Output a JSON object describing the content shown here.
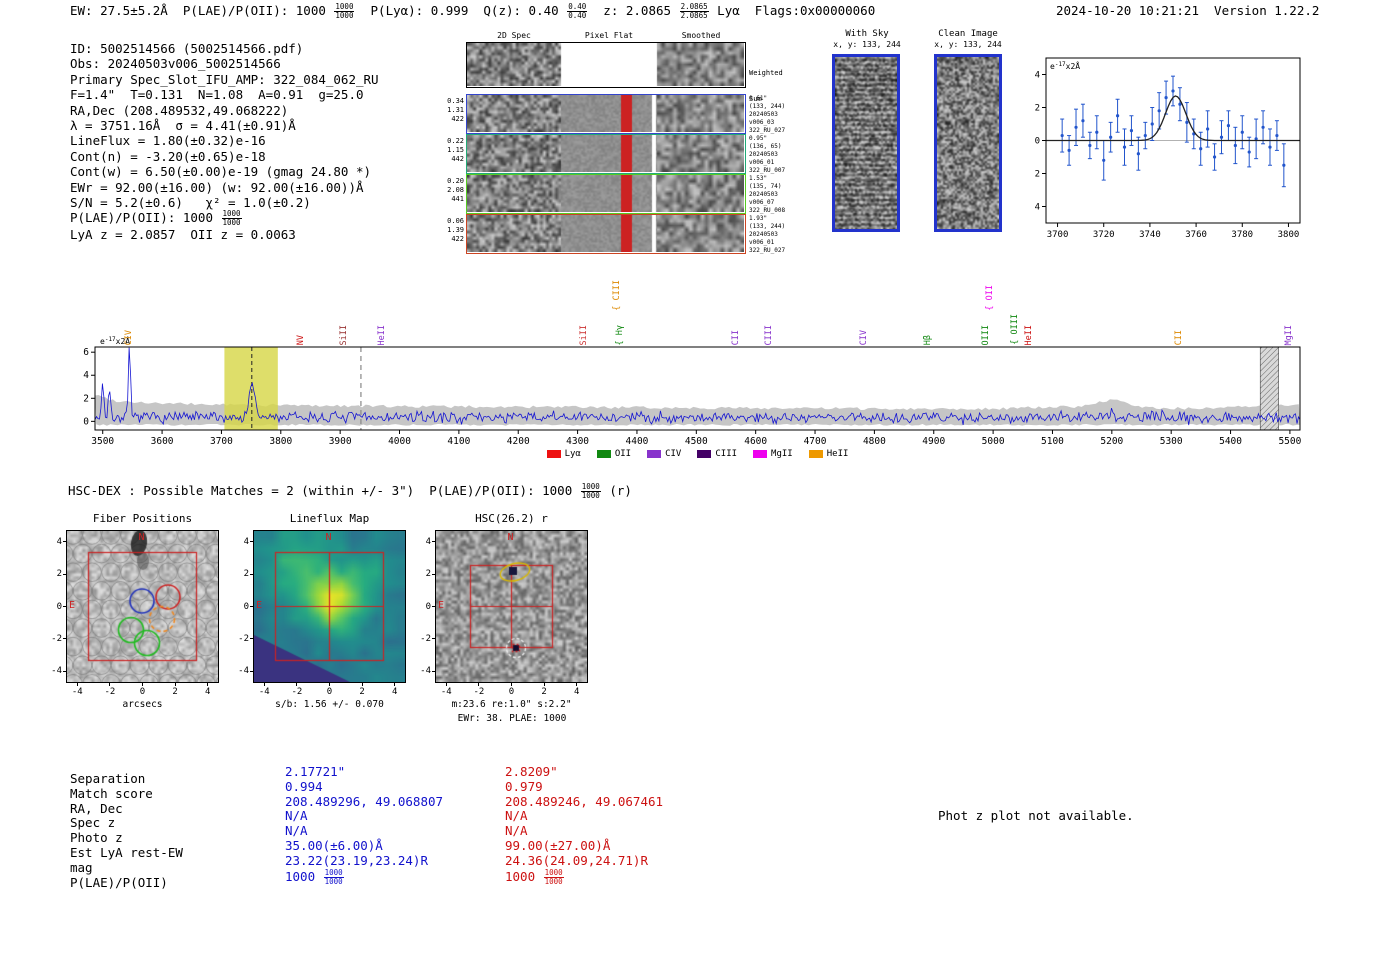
{
  "header": {
    "left_segments": [
      {
        "t": "EW: 27.5±5.2Å  P(LAE)/P(OII): 1000 "
      },
      {
        "f": [
          "1000",
          "1000"
        ]
      },
      {
        "t": "  P(Lyα): 0.999  Q(z): 0.40 "
      },
      {
        "f": [
          "0.40",
          "0.40"
        ]
      },
      {
        "t": "  z: 2.0865 "
      },
      {
        "f": [
          "2.0865",
          "2.0865"
        ]
      },
      {
        "t": " Lyα  Flags:0x00000060"
      }
    ],
    "right": "2024-10-20 10:21:21  Version 1.22.2"
  },
  "info_lines": [
    [
      {
        "t": "ID: 5002514566 (5002514566.pdf)"
      }
    ],
    [
      {
        "t": "Obs: 20240503v006_5002514566"
      }
    ],
    [
      {
        "t": "Primary Spec_Slot_IFU_AMP: 322_084_062_RU"
      }
    ],
    [
      {
        "t": "F=1.4\"  T=0.131  N=1.08  A=0.91  g=25.0"
      }
    ],
    [
      {
        "t": "RA,Dec (208.489532,49.068222)"
      }
    ],
    [
      {
        "t": "λ = 3751.16Å  σ = 4.41(±0.91)Å"
      }
    ],
    [
      {
        "t": "LineFlux = 1.80(±0.32)e-16"
      }
    ],
    [
      {
        "t": "Cont(n) = -3.20(±0.65)e-18"
      }
    ],
    [
      {
        "t": "Cont(w) = 6.50(±0.00)e-19 (gmag 24.80 *)"
      }
    ],
    [
      {
        "t": "EWr = 92.00(±16.00) (w: 92.00(±16.00))Å"
      }
    ],
    [
      {
        "t": "S/N = 5.2(±0.6)   χ² = 1.0(±0.2)"
      }
    ],
    [
      {
        "t": "P(LAE)/P(OII): 1000 "
      },
      {
        "f": [
          "1000",
          "1000"
        ]
      }
    ],
    [
      {
        "t": "LyA z = 2.0857  OII z = 0.0063"
      }
    ]
  ],
  "spec2d": {
    "headers": {
      "spec": "2D Spec",
      "flat": "Pixel Flat",
      "smoothed": "Smoothed",
      "weighted": "Weighted",
      "sum": "Sum"
    },
    "rows": [
      {
        "color": "#000000",
        "type": "weighted"
      },
      {
        "color": "#3344cc",
        "left": [
          "0.34",
          "1.31",
          "422"
        ],
        "right": [
          "0.61\"",
          "(133, 244)",
          "20240503",
          "v006_03",
          "322_RU_027"
        ]
      },
      {
        "color": "#22aa77",
        "left": [
          "0.22",
          "1.15",
          "442"
        ],
        "right": [
          "0.95\"",
          "(136, 65)",
          "20240503",
          "v006_01",
          "322_RU_007"
        ]
      },
      {
        "color": "#55cc22",
        "left": [
          "0.20",
          "2.08",
          "441"
        ],
        "right": [
          "1.53\"",
          "(135, 74)",
          "20240503",
          "v006_07",
          "322_RU_008"
        ]
      },
      {
        "color": "#cc4422",
        "left": [
          "0.06",
          "1.39",
          "422"
        ],
        "right": [
          "1.93\"",
          "(133, 244)",
          "20240503",
          "v006_01",
          "322_RU_027"
        ]
      }
    ]
  },
  "sky_panels": {
    "border": "#2233cc",
    "with_sky": {
      "title": "With Sky",
      "coords": "x, y: 133, 244"
    },
    "clean": {
      "title": "Clean Image",
      "coords": "x, y: 133, 244"
    }
  },
  "hsc_line": [
    {
      "t": "HSC-DEX : Possible Matches = 2 (within +/- 3\")  P(LAE)/P(OII): 1000 "
    },
    {
      "f": [
        "1000",
        "1000"
      ]
    },
    {
      "t": " (r)"
    }
  ],
  "cutouts": {
    "fiber": {
      "title": "Fiber Positions",
      "xlabel": "arcsecs",
      "north": "N",
      "east": "E",
      "x_ticks": [
        -4,
        -2,
        0,
        2,
        4
      ],
      "y_ticks": [
        4,
        2,
        0,
        -2,
        -4
      ]
    },
    "lineflux": {
      "title": "Lineflux Map",
      "xlabel": "s/b: 1.56 +/- 0.070",
      "north": "N",
      "east": "E",
      "x_ticks": [
        -4,
        -2,
        0,
        2,
        4
      ],
      "y_ticks": [
        4,
        2,
        0,
        -2,
        -4
      ]
    },
    "hsc": {
      "title": "HSC(26.2) r",
      "xlabel": "m:23.6 re:1.0\" s:2.2\"",
      "xlabel2": "EWr: 38. PLAE: 1000",
      "north": "N",
      "east": "E",
      "x_ticks": [
        -4,
        -2,
        0,
        2,
        4
      ],
      "y_ticks": [
        4,
        2,
        0,
        -2,
        -4
      ]
    }
  },
  "table": {
    "labels": [
      "Separation",
      "Match score",
      "RA, Dec",
      "Spec z",
      "Photo z",
      "Est LyA rest-EW",
      "mag",
      "P(LAE)/P(OII)"
    ],
    "col1": {
      "color": "#1111cc",
      "values": [
        [
          {
            "t": "2.17721\""
          }
        ],
        [
          {
            "t": "0.994"
          }
        ],
        [
          {
            "t": "208.489296, 49.068807"
          }
        ],
        [
          {
            "t": "N/A"
          }
        ],
        [
          {
            "t": "N/A"
          }
        ],
        [
          {
            "t": "35.00(±6.00)Å"
          }
        ],
        [
          {
            "t": "23.22(23.19,23.24)R"
          }
        ],
        [
          {
            "t": "1000 "
          },
          {
            "f": [
              "1000",
              "1000"
            ]
          }
        ]
      ]
    },
    "col2": {
      "color": "#cc1111",
      "values": [
        [
          {
            "t": "2.8209\""
          }
        ],
        [
          {
            "t": "0.979"
          }
        ],
        [
          {
            "t": "208.489246, 49.067461"
          }
        ],
        [
          {
            "t": "N/A"
          }
        ],
        [
          {
            "t": "N/A"
          }
        ],
        [
          {
            "t": "99.00(±27.00)Å"
          }
        ],
        [
          {
            "t": "24.36(24.09,24.71)R"
          }
        ],
        [
          {
            "t": "1000 "
          },
          {
            "f": [
              "1000",
              "1000"
            ]
          }
        ]
      ]
    }
  },
  "notes": {
    "photz": "Phot z plot not available."
  },
  "chart_data": [
    {
      "type": "line",
      "name": "full_spectrum",
      "ylabel": {
        "base": "e",
        "exp": "-17",
        "suffix": "x2Å"
      },
      "x_range": [
        3487,
        5517
      ],
      "x_ticks": [
        3500,
        3600,
        3700,
        3800,
        3900,
        4000,
        4100,
        4200,
        4300,
        4400,
        4500,
        4600,
        4700,
        4800,
        4900,
        5000,
        5100,
        5200,
        5300,
        5400,
        5500
      ],
      "y_ticks": [
        0,
        2,
        4,
        6
      ],
      "continuum": 0.35,
      "noise_sigma": 0.42,
      "seed": 7,
      "peak": {
        "center": 3751.16,
        "sigma": 4.41,
        "amplitude": 3.1
      },
      "spikes": [
        {
          "wl": 3500,
          "amp": 3.2
        },
        {
          "wl": 3511,
          "amp": 2.4
        },
        {
          "wl": 3545,
          "amp": 5.9
        },
        {
          "wl": 5200,
          "amp": 1.1
        }
      ],
      "error_band": {
        "x": [
          3487,
          3520,
          3600,
          3700,
          3800,
          3900,
          4000,
          4200,
          4400,
          4600,
          4800,
          5000,
          5150,
          5200,
          5250,
          5350,
          5450,
          5517
        ],
        "top": [
          2.3,
          1.8,
          1.55,
          1.45,
          1.4,
          1.35,
          1.3,
          1.25,
          1.2,
          1.15,
          1.1,
          1.1,
          1.3,
          1.9,
          1.2,
          1.1,
          1.3,
          1.5
        ]
      },
      "highlight_band": [
        3705,
        3795
      ],
      "highlight_color": "#d6d645",
      "marker_line": 3751.16,
      "secondary_line": 3935,
      "hatch_band": [
        5450,
        5481
      ],
      "line_labels": [
        {
          "wl": 3546,
          "label": "CIV",
          "color": "#dd8800",
          "row": 0
        },
        {
          "wl": 3836,
          "label": "NV",
          "color": "#cc1111",
          "row": 0
        },
        {
          "wl": 3908,
          "label": "SiII",
          "color": "#993333",
          "row": 0
        },
        {
          "wl": 3972,
          "label": "HeII",
          "color": "#8833cc",
          "row": 0
        },
        {
          "wl": 4313,
          "label": "SiII",
          "color": "#cc3333",
          "row": 0
        },
        {
          "wl": 4368,
          "label": "CIII",
          "color": "#dd8800",
          "row": 1,
          "brace": true
        },
        {
          "wl": 4373,
          "label": "Hγ",
          "color": "#118811",
          "row": 0,
          "brace": true
        },
        {
          "wl": 4569,
          "label": "CII",
          "color": "#8833cc",
          "row": 0
        },
        {
          "wl": 4624,
          "label": "CIII",
          "color": "#8833cc",
          "row": 0
        },
        {
          "wl": 4784,
          "label": "CIV",
          "color": "#8833cc",
          "row": 0
        },
        {
          "wl": 4892,
          "label": "Hβ",
          "color": "#118811",
          "row": 0
        },
        {
          "wl": 4990,
          "label": "OIII",
          "color": "#118811",
          "row": 0
        },
        {
          "wl": 4996,
          "label": "OII",
          "color": "#ee00ee",
          "row": 1,
          "brace": true
        },
        {
          "wl": 5039,
          "label": "OIII",
          "color": "#118811",
          "row": 0,
          "brace": true
        },
        {
          "wl": 5062,
          "label": "HeII",
          "color": "#cc1111",
          "row": 0
        },
        {
          "wl": 5315,
          "label": "CII",
          "color": "#dd8800",
          "row": 0
        },
        {
          "wl": 5500,
          "label": "MgII",
          "color": "#8833cc",
          "row": 0
        }
      ],
      "legend": [
        {
          "label": "Lyα",
          "color": "#ee1111"
        },
        {
          "label": "OII",
          "color": "#118811"
        },
        {
          "label": "CIV",
          "color": "#8833cc"
        },
        {
          "label": "CIII",
          "color": "#440066"
        },
        {
          "label": "MgII",
          "color": "#ee00ee"
        },
        {
          "label": "HeII",
          "color": "#ee9900"
        }
      ]
    },
    {
      "type": "errorbar",
      "name": "line_fit_zoom",
      "ylabel": {
        "base": "e",
        "exp": "-17",
        "suffix": "x2Å"
      },
      "x_range": [
        3695,
        3805
      ],
      "x_ticks": [
        3700,
        3720,
        3740,
        3760,
        3780,
        3800
      ],
      "y_ticks": [
        -4,
        -2,
        0,
        2,
        4
      ],
      "points": {
        "x": [
          3702,
          3705,
          3708,
          3711,
          3714,
          3717,
          3720,
          3723,
          3726,
          3729,
          3732,
          3735,
          3738,
          3741,
          3744,
          3747,
          3750,
          3753,
          3756,
          3759,
          3762,
          3765,
          3768,
          3771,
          3774,
          3777,
          3780,
          3783,
          3786,
          3789,
          3792,
          3795,
          3798
        ],
        "y": [
          0.3,
          -0.6,
          0.8,
          1.2,
          -0.3,
          0.5,
          -1.2,
          0.2,
          1.5,
          -0.4,
          0.6,
          -0.8,
          0.3,
          1.0,
          1.8,
          2.6,
          3.0,
          2.2,
          1.1,
          0.4,
          -0.5,
          0.7,
          -1.0,
          0.2,
          0.9,
          -0.3,
          0.5,
          -0.7,
          0.1,
          0.8,
          -0.4,
          0.3,
          -1.5
        ],
        "err": [
          1.0,
          0.9,
          1.1,
          1.0,
          0.8,
          1.0,
          1.2,
          0.9,
          1.0,
          1.1,
          0.9,
          1.0,
          0.8,
          1.0,
          1.1,
          1.0,
          0.9,
          1.0,
          1.2,
          0.9,
          1.0,
          1.1,
          0.8,
          1.0,
          0.9,
          1.1,
          1.0,
          0.9,
          1.2,
          1.0,
          1.1,
          0.9,
          1.3
        ],
        "color": "#2255cc"
      },
      "fit": {
        "center": 3751.16,
        "sigma": 4.41,
        "amplitude": 2.7
      }
    }
  ]
}
